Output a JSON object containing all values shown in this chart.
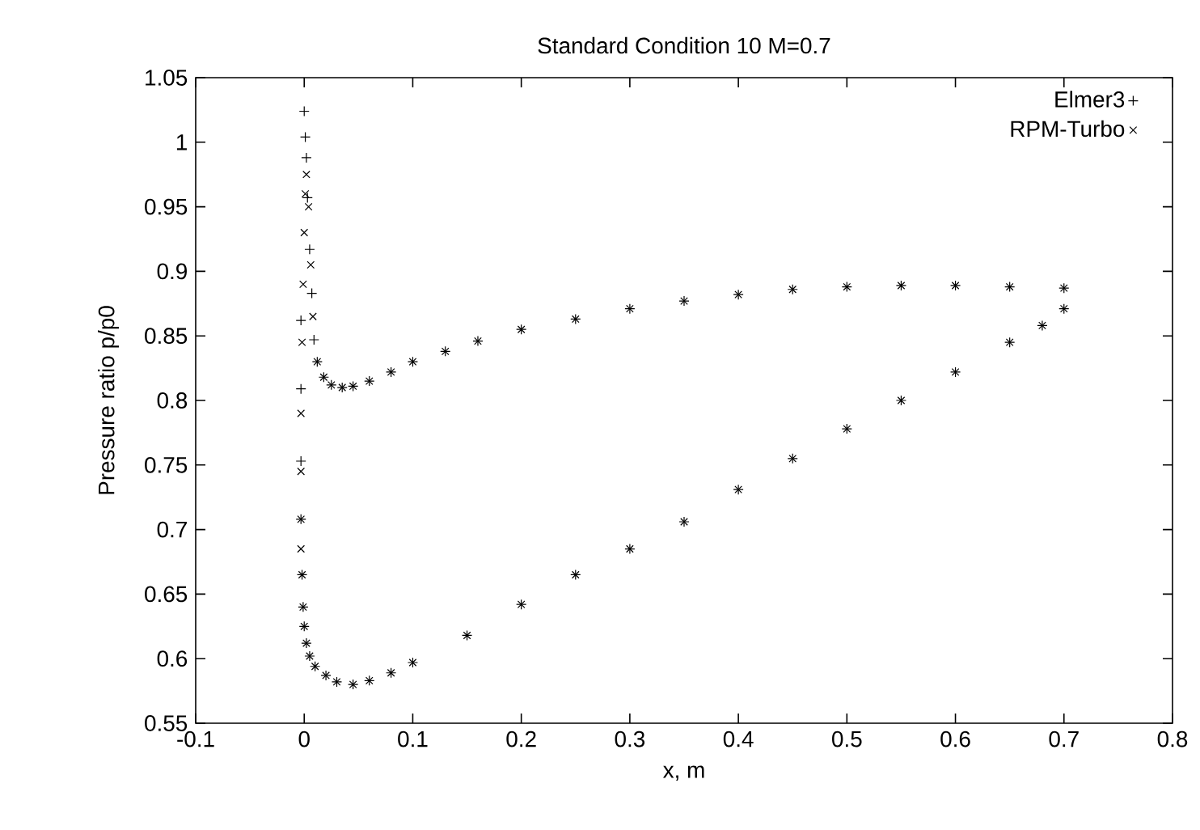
{
  "chart_data": {
    "type": "scatter",
    "title": "Standard Condition 10 M=0.7",
    "xlabel": "x, m",
    "ylabel": "Pressure ratio p/p0",
    "xlim": [
      -0.1,
      0.8
    ],
    "ylim": [
      0.55,
      1.05
    ],
    "xticks": [
      -0.1,
      0,
      0.1,
      0.2,
      0.3,
      0.4,
      0.5,
      0.6,
      0.7,
      0.8
    ],
    "yticks": [
      0.55,
      0.6,
      0.65,
      0.7,
      0.75,
      0.8,
      0.85,
      0.9,
      0.95,
      1,
      1.05
    ],
    "grid": false,
    "legend": "top right",
    "series": [
      {
        "name": "Elmer3",
        "color": "#000000",
        "marker": "plus",
        "x": [
          -0.003,
          -0.003,
          -0.003,
          0.0,
          0.001,
          0.002,
          0.003,
          0.005,
          0.007,
          0.009,
          0.012,
          0.018,
          0.025,
          0.035,
          0.045,
          0.06,
          0.08,
          0.1,
          0.13,
          0.16,
          0.2,
          0.25,
          0.3,
          0.35,
          0.4,
          0.45,
          0.5,
          0.55,
          0.6,
          0.65,
          0.7,
          0.7,
          0.68,
          0.65,
          0.6,
          0.55,
          0.5,
          0.45,
          0.4,
          0.35,
          0.3,
          0.25,
          0.2,
          0.15,
          0.1,
          0.08,
          0.06,
          0.045,
          0.03,
          0.02,
          0.01,
          0.005,
          0.002,
          0.0,
          -0.001,
          -0.002,
          -0.003
        ],
        "values": [
          0.753,
          0.809,
          0.862,
          1.024,
          1.004,
          0.988,
          0.957,
          0.917,
          0.883,
          0.847,
          0.83,
          0.818,
          0.812,
          0.81,
          0.811,
          0.815,
          0.822,
          0.83,
          0.838,
          0.846,
          0.855,
          0.863,
          0.871,
          0.877,
          0.882,
          0.886,
          0.888,
          0.889,
          0.889,
          0.888,
          0.887,
          0.871,
          0.858,
          0.845,
          0.822,
          0.8,
          0.778,
          0.755,
          0.731,
          0.706,
          0.685,
          0.665,
          0.642,
          0.618,
          0.597,
          0.589,
          0.583,
          0.58,
          0.582,
          0.587,
          0.594,
          0.602,
          0.612,
          0.625,
          0.64,
          0.665,
          0.708
        ]
      },
      {
        "name": "RPM-Turbo",
        "color": "#000000",
        "marker": "cross",
        "x": [
          -0.003,
          -0.003,
          -0.002,
          -0.001,
          0.0,
          0.001,
          0.002,
          0.004,
          0.006,
          0.008,
          0.012,
          0.018,
          0.025,
          0.035,
          0.045,
          0.06,
          0.08,
          0.1,
          0.13,
          0.16,
          0.2,
          0.25,
          0.3,
          0.35,
          0.4,
          0.45,
          0.5,
          0.55,
          0.6,
          0.65,
          0.7,
          0.7,
          0.68,
          0.65,
          0.6,
          0.55,
          0.5,
          0.45,
          0.4,
          0.35,
          0.3,
          0.25,
          0.2,
          0.15,
          0.1,
          0.08,
          0.06,
          0.045,
          0.03,
          0.02,
          0.01,
          0.005,
          0.002,
          0.0,
          -0.001,
          -0.002,
          -0.003,
          -0.003
        ],
        "values": [
          0.745,
          0.79,
          0.845,
          0.89,
          0.93,
          0.96,
          0.975,
          0.95,
          0.905,
          0.865,
          0.83,
          0.818,
          0.812,
          0.81,
          0.811,
          0.815,
          0.822,
          0.83,
          0.838,
          0.846,
          0.855,
          0.863,
          0.871,
          0.877,
          0.882,
          0.886,
          0.888,
          0.889,
          0.889,
          0.888,
          0.887,
          0.871,
          0.858,
          0.845,
          0.822,
          0.8,
          0.778,
          0.755,
          0.731,
          0.706,
          0.685,
          0.665,
          0.642,
          0.618,
          0.597,
          0.589,
          0.583,
          0.58,
          0.582,
          0.587,
          0.594,
          0.602,
          0.612,
          0.625,
          0.64,
          0.665,
          0.685,
          0.708
        ]
      }
    ]
  }
}
